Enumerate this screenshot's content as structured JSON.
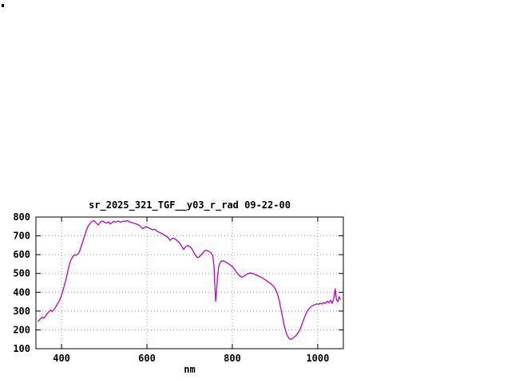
{
  "page": {
    "background_color": "#ffffff"
  },
  "chart_data": {
    "type": "line",
    "title": "sr_2025_321_TGF__y03_r_rad 09-22-00",
    "xlabel": "nm",
    "xlim": [
      340,
      1060
    ],
    "ylim": [
      100,
      800
    ],
    "xticks": [
      400,
      600,
      800,
      1000
    ],
    "yticks": [
      100,
      200,
      300,
      400,
      500,
      600,
      700,
      800
    ],
    "grid": true,
    "grid_style": "dotted",
    "legend": false,
    "line_color": "#bb00bb",
    "grid_color": "#999999",
    "border_color": "#000000",
    "text_color": "#000000",
    "points": [
      [
        345,
        245
      ],
      [
        350,
        258
      ],
      [
        355,
        268
      ],
      [
        358,
        262
      ],
      [
        362,
        272
      ],
      [
        366,
        285
      ],
      [
        370,
        296
      ],
      [
        374,
        305
      ],
      [
        378,
        298
      ],
      [
        382,
        308
      ],
      [
        386,
        320
      ],
      [
        390,
        338
      ],
      [
        394,
        350
      ],
      [
        398,
        372
      ],
      [
        402,
        400
      ],
      [
        406,
        432
      ],
      [
        410,
        465
      ],
      [
        414,
        505
      ],
      [
        418,
        545
      ],
      [
        422,
        572
      ],
      [
        426,
        588
      ],
      [
        430,
        600
      ],
      [
        434,
        597
      ],
      [
        438,
        602
      ],
      [
        442,
        615
      ],
      [
        446,
        645
      ],
      [
        450,
        672
      ],
      [
        454,
        700
      ],
      [
        458,
        728
      ],
      [
        462,
        750
      ],
      [
        466,
        765
      ],
      [
        470,
        774
      ],
      [
        474,
        781
      ],
      [
        478,
        777
      ],
      [
        482,
        766
      ],
      [
        486,
        758
      ],
      [
        490,
        770
      ],
      [
        494,
        779
      ],
      [
        498,
        777
      ],
      [
        502,
        771
      ],
      [
        506,
        768
      ],
      [
        510,
        774
      ],
      [
        514,
        763
      ],
      [
        518,
        770
      ],
      [
        522,
        777
      ],
      [
        526,
        773
      ],
      [
        530,
        777
      ],
      [
        534,
        779
      ],
      [
        538,
        772
      ],
      [
        542,
        776
      ],
      [
        546,
        779
      ],
      [
        550,
        777
      ],
      [
        554,
        781
      ],
      [
        558,
        776
      ],
      [
        562,
        772
      ],
      [
        566,
        769
      ],
      [
        570,
        767
      ],
      [
        574,
        764
      ],
      [
        578,
        760
      ],
      [
        582,
        756
      ],
      [
        586,
        748
      ],
      [
        590,
        738
      ],
      [
        594,
        744
      ],
      [
        598,
        749
      ],
      [
        602,
        745
      ],
      [
        606,
        740
      ],
      [
        610,
        736
      ],
      [
        614,
        732
      ],
      [
        618,
        735
      ],
      [
        622,
        728
      ],
      [
        626,
        722
      ],
      [
        630,
        718
      ],
      [
        634,
        713
      ],
      [
        638,
        708
      ],
      [
        642,
        703
      ],
      [
        646,
        697
      ],
      [
        650,
        690
      ],
      [
        654,
        676
      ],
      [
        658,
        684
      ],
      [
        662,
        688
      ],
      [
        666,
        683
      ],
      [
        670,
        676
      ],
      [
        674,
        668
      ],
      [
        678,
        658
      ],
      [
        682,
        642
      ],
      [
        686,
        628
      ],
      [
        690,
        640
      ],
      [
        694,
        648
      ],
      [
        698,
        646
      ],
      [
        702,
        640
      ],
      [
        706,
        628
      ],
      [
        710,
        612
      ],
      [
        714,
        596
      ],
      [
        718,
        585
      ],
      [
        722,
        588
      ],
      [
        726,
        596
      ],
      [
        730,
        606
      ],
      [
        734,
        618
      ],
      [
        738,
        624
      ],
      [
        742,
        621
      ],
      [
        746,
        616
      ],
      [
        750,
        610
      ],
      [
        754,
        596
      ],
      [
        757,
        540
      ],
      [
        759,
        445
      ],
      [
        761,
        352
      ],
      [
        763,
        400
      ],
      [
        765,
        480
      ],
      [
        768,
        535
      ],
      [
        771,
        556
      ],
      [
        774,
        565
      ],
      [
        778,
        568
      ],
      [
        782,
        564
      ],
      [
        786,
        558
      ],
      [
        790,
        553
      ],
      [
        794,
        547
      ],
      [
        798,
        541
      ],
      [
        802,
        532
      ],
      [
        806,
        520
      ],
      [
        810,
        506
      ],
      [
        814,
        494
      ],
      [
        818,
        486
      ],
      [
        822,
        481
      ],
      [
        826,
        484
      ],
      [
        830,
        490
      ],
      [
        834,
        496
      ],
      [
        838,
        500
      ],
      [
        842,
        503
      ],
      [
        846,
        501
      ],
      [
        850,
        498
      ],
      [
        854,
        494
      ],
      [
        858,
        490
      ],
      [
        862,
        486
      ],
      [
        866,
        481
      ],
      [
        870,
        477
      ],
      [
        874,
        471
      ],
      [
        878,
        465
      ],
      [
        882,
        459
      ],
      [
        886,
        452
      ],
      [
        890,
        446
      ],
      [
        894,
        438
      ],
      [
        898,
        428
      ],
      [
        902,
        412
      ],
      [
        906,
        388
      ],
      [
        910,
        355
      ],
      [
        914,
        310
      ],
      [
        918,
        262
      ],
      [
        922,
        218
      ],
      [
        926,
        186
      ],
      [
        930,
        165
      ],
      [
        934,
        152
      ],
      [
        938,
        150
      ],
      [
        942,
        157
      ],
      [
        946,
        163
      ],
      [
        950,
        172
      ],
      [
        954,
        184
      ],
      [
        958,
        200
      ],
      [
        962,
        222
      ],
      [
        966,
        248
      ],
      [
        970,
        272
      ],
      [
        974,
        292
      ],
      [
        978,
        308
      ],
      [
        982,
        318
      ],
      [
        986,
        326
      ],
      [
        990,
        331
      ],
      [
        994,
        335
      ],
      [
        998,
        338
      ],
      [
        1002,
        336
      ],
      [
        1006,
        342
      ],
      [
        1010,
        338
      ],
      [
        1014,
        346
      ],
      [
        1018,
        340
      ],
      [
        1022,
        352
      ],
      [
        1026,
        344
      ],
      [
        1030,
        358
      ],
      [
        1034,
        342
      ],
      [
        1038,
        372
      ],
      [
        1041,
        418
      ],
      [
        1044,
        360
      ],
      [
        1047,
        350
      ],
      [
        1050,
        376
      ],
      [
        1053,
        362
      ]
    ]
  }
}
